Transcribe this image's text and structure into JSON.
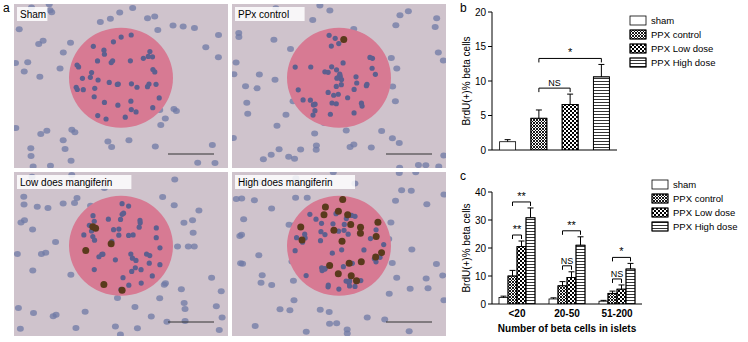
{
  "panel_a": {
    "label": "a",
    "images": [
      {
        "label": "Sham"
      },
      {
        "label": "PPx control"
      },
      {
        "label": "Low does mangiferin"
      },
      {
        "label": "High does mangiferin"
      }
    ]
  },
  "chart_data": [
    {
      "type": "bar",
      "panel_label": "b",
      "ylabel": "BrdU(+)% beta cells",
      "categories": [
        "sham",
        "PPX control",
        "PPX Low dose",
        "PPX High dose"
      ],
      "values": [
        1.2,
        4.6,
        6.6,
        10.6
      ],
      "errors": [
        0.3,
        1.2,
        1.5,
        1.8
      ],
      "colors": [
        "#ffffff",
        "#ffffff",
        "#ffffff",
        "#ffffff"
      ],
      "ylim": [
        0,
        20
      ],
      "yticks": [
        0,
        5,
        10,
        15,
        20
      ],
      "tick_labels": "y",
      "legend": "right",
      "annotations": [
        {
          "from": "PPX control",
          "to": "PPX Low dose",
          "label": "NS"
        },
        {
          "from": "PPX control",
          "to": "PPX High dose",
          "label": "*"
        }
      ]
    },
    {
      "type": "bar",
      "panel_label": "c",
      "xlabel": "Number of beta cells in islets",
      "ylabel": "BrdU(+)% beta cells",
      "categories": [
        "<20",
        "20-50",
        "51-200"
      ],
      "series": [
        {
          "name": "sham",
          "color": "#ffffff",
          "values": [
            2.3,
            1.8,
            1.0
          ],
          "errors": [
            0.5,
            0.4,
            0.3
          ]
        },
        {
          "name": "PPX control",
          "color": "#ffffff",
          "values": [
            10,
            6.5,
            3.8
          ],
          "errors": [
            2,
            1.5,
            0.8
          ]
        },
        {
          "name": "PPX Low dose",
          "color": "#ffffff",
          "values": [
            20.5,
            9.5,
            5.3
          ],
          "errors": [
            2,
            2,
            1.5
          ]
        },
        {
          "name": "PPX High dose",
          "color": "#ffffff",
          "values": [
            30.8,
            21,
            12.5
          ],
          "errors": [
            3.5,
            3,
            2
          ]
        }
      ],
      "ylim": [
        0,
        40
      ],
      "yticks": [
        0,
        10,
        20,
        30,
        40
      ],
      "legend": "right",
      "annotations": [
        {
          "category": "<20",
          "from": "PPX control",
          "to": "PPX Low dose",
          "label": "**"
        },
        {
          "category": "<20",
          "from": "PPX control",
          "to": "PPX High dose",
          "label": "**"
        },
        {
          "category": "20-50",
          "from": "PPX control",
          "to": "PPX Low dose",
          "label": "NS"
        },
        {
          "category": "20-50",
          "from": "PPX control",
          "to": "PPX High dose",
          "label": "**"
        },
        {
          "category": "51-200",
          "from": "PPX control",
          "to": "PPX Low dose",
          "label": "NS"
        },
        {
          "category": "51-200",
          "from": "PPX control",
          "to": "PPX High dose",
          "label": "*"
        }
      ]
    }
  ]
}
